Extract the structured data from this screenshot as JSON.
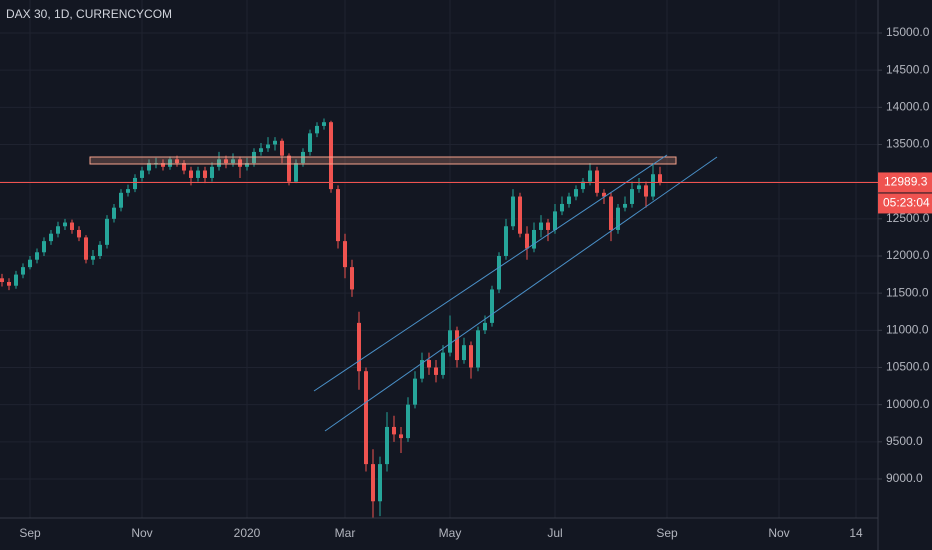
{
  "chart_data": {
    "type": "candlestick",
    "title": "DAX 30, 1D, CURRENCYCOM",
    "countdown": "05:23:04",
    "up_color": "#26a69a",
    "down_color": "#ef5350",
    "grid": true,
    "categories": [
      null,
      null,
      null,
      null,
      "Sep",
      null,
      null,
      null,
      null,
      null,
      null,
      null,
      null,
      null,
      null,
      null,
      null,
      null,
      null,
      null,
      "Nov",
      null,
      null,
      null,
      null,
      null,
      null,
      null,
      null,
      null,
      null,
      null,
      null,
      null,
      null,
      "2020",
      null,
      null,
      null,
      null,
      null,
      null,
      null,
      null,
      null,
      null,
      null,
      null,
      null,
      "Mar",
      null,
      null,
      null,
      null,
      null,
      null,
      null,
      null,
      null,
      null,
      null,
      null,
      null,
      null,
      "May",
      null,
      null,
      null,
      null,
      null,
      null,
      null,
      null,
      null,
      null,
      null,
      null,
      null,
      null,
      "Jul",
      null,
      null,
      null,
      null,
      null,
      null,
      null,
      null,
      null,
      null,
      null,
      null,
      null,
      null,
      null,
      "Sep",
      null,
      null,
      null,
      null,
      null,
      null,
      null,
      null,
      null,
      null,
      null,
      null,
      null,
      null,
      null,
      "Nov",
      null,
      null,
      null,
      null,
      null,
      null,
      null,
      null,
      null,
      null,
      "14",
      null,
      null,
      null
    ],
    "open": [
      11700,
      11650,
      11600,
      11750,
      11850,
      11950,
      12050,
      12200,
      12300,
      12400,
      12450,
      12350,
      12250,
      11950,
      12000,
      12150,
      12500,
      12650,
      12850,
      12900,
      13050,
      13150,
      13230,
      13250,
      13200,
      13300,
      13250,
      13150,
      13050,
      13150,
      13050,
      13200,
      13300,
      13250,
      13300,
      13200,
      13250,
      13400,
      13450,
      13500,
      13550,
      13350,
      13000,
      13250,
      13400,
      13650,
      13750,
      13800,
      12900,
      12200,
      11850,
      11100,
      10450,
      9200,
      8700,
      9200,
      9700,
      9600,
      9550,
      10000,
      10350,
      10600,
      10500,
      10400,
      10700,
      11000,
      10600,
      10800,
      10500,
      11000,
      11100,
      11550,
      12000,
      12400,
      12800,
      12300,
      12100,
      12350,
      12450,
      12350,
      12600,
      12700,
      12800,
      12900,
      13000,
      13150,
      12850,
      12800,
      12350,
      12650,
      12700,
      12900,
      12950,
      12800,
      13100,
      null,
      null,
      null,
      null,
      null,
      null,
      null,
      null,
      null,
      null,
      null,
      null,
      null,
      null,
      null,
      null,
      null,
      null,
      null,
      null,
      null,
      null,
      null,
      null,
      null,
      null,
      null,
      null,
      null,
      null,
      null
    ],
    "high": [
      11760,
      11700,
      11800,
      11900,
      12000,
      12100,
      12250,
      12350,
      12460,
      12500,
      12490,
      12400,
      12280,
      12080,
      12200,
      12550,
      12700,
      12900,
      12960,
      13100,
      13200,
      13300,
      13320,
      13300,
      13340,
      13350,
      13290,
      13200,
      13200,
      13200,
      13260,
      13400,
      13350,
      13380,
      13340,
      13320,
      13450,
      13520,
      13600,
      13600,
      13580,
      13380,
      13300,
      13450,
      13700,
      13800,
      13850,
      13820,
      12950,
      12300,
      11950,
      11250,
      10500,
      9400,
      9300,
      9900,
      9850,
      9700,
      10100,
      10450,
      10700,
      10700,
      10600,
      10800,
      11200,
      11050,
      10900,
      10850,
      11050,
      11200,
      11600,
      12050,
      12500,
      12900,
      12850,
      12400,
      12450,
      12550,
      12500,
      12700,
      12800,
      12850,
      12950,
      13050,
      13250,
      13200,
      12900,
      12850,
      12700,
      12800,
      13000,
      13050,
      13000,
      13250,
      13200,
      null,
      null,
      null,
      null,
      null,
      null,
      null,
      null,
      null,
      null,
      null,
      null,
      null,
      null,
      null,
      null,
      null,
      null,
      null,
      null,
      null,
      null,
      null,
      null,
      null,
      null,
      null,
      null,
      null,
      null,
      null
    ],
    "low": [
      11590,
      11540,
      11560,
      11700,
      11820,
      11900,
      12000,
      12150,
      12250,
      12350,
      12300,
      12200,
      11900,
      11880,
      11960,
      12100,
      12450,
      12600,
      12800,
      12860,
      13000,
      13100,
      13180,
      13150,
      13160,
      13200,
      13100,
      12950,
      13000,
      12980,
      13000,
      13150,
      13180,
      13200,
      13050,
      13150,
      13200,
      13350,
      13400,
      13420,
      13250,
      12950,
      12980,
      13200,
      13350,
      13600,
      13700,
      12850,
      12100,
      11700,
      11450,
      10200,
      9100,
      8450,
      8500,
      9100,
      9500,
      9350,
      9500,
      9950,
      10300,
      10400,
      10300,
      10350,
      10650,
      10500,
      10550,
      10350,
      10450,
      10950,
      11050,
      11500,
      11950,
      12350,
      12250,
      11950,
      12050,
      12250,
      12200,
      12300,
      12550,
      12650,
      12750,
      12850,
      12950,
      12800,
      12700,
      12200,
      12300,
      12600,
      12650,
      12850,
      12650,
      12750,
      12950,
      null,
      null,
      null,
      null,
      null,
      null,
      null,
      null,
      null,
      null,
      null,
      null,
      null,
      null,
      null,
      null,
      null,
      null,
      null,
      null,
      null,
      null,
      null,
      null,
      null,
      null,
      null,
      null,
      null,
      null,
      null
    ],
    "close": [
      11650,
      11600,
      11750,
      11850,
      11950,
      12050,
      12200,
      12300,
      12400,
      12450,
      12350,
      12250,
      11950,
      12000,
      12150,
      12500,
      12650,
      12850,
      12900,
      13050,
      13150,
      13250,
      13250,
      13200,
      13300,
      13250,
      13150,
      13050,
      13150,
      13050,
      13200,
      13300,
      13250,
      13300,
      13200,
      13250,
      13400,
      13450,
      13500,
      13550,
      13350,
      13000,
      13250,
      13400,
      13650,
      13750,
      13800,
      12900,
      12200,
      11850,
      11550,
      10450,
      9200,
      8700,
      9200,
      9700,
      9600,
      9550,
      10000,
      10350,
      10600,
      10500,
      10400,
      10700,
      11000,
      10600,
      10800,
      10500,
      11000,
      11100,
      11550,
      12000,
      12400,
      12800,
      12300,
      12100,
      12350,
      12450,
      12350,
      12600,
      12700,
      12800,
      12900,
      13000,
      13150,
      12850,
      12800,
      12350,
      12650,
      12700,
      12900,
      12950,
      12800,
      13100,
      12989.3,
      null,
      null,
      null,
      null,
      null,
      null,
      null,
      null,
      null,
      null,
      null,
      null,
      null,
      null,
      null,
      null,
      null,
      null,
      null,
      null,
      null,
      null,
      null,
      null,
      null,
      null,
      null,
      null,
      null,
      null,
      null
    ],
    "ylim": [
      8475,
      15444
    ],
    "yticks": [
      {
        "value": 9000,
        "label": "9000.0"
      },
      {
        "value": 9500,
        "label": "9500.0"
      },
      {
        "value": 10000,
        "label": "10000.0"
      },
      {
        "value": 10500,
        "label": "10500.0"
      },
      {
        "value": 11000,
        "label": "11000.0"
      },
      {
        "value": 11500,
        "label": "11500.0"
      },
      {
        "value": 12000,
        "label": "12000.0"
      },
      {
        "value": 12500,
        "label": "12500.0"
      },
      {
        "value": 13000,
        "label": "13000.0"
      },
      {
        "value": 13500,
        "label": "13500.0"
      },
      {
        "value": 14000,
        "label": "14000.0"
      },
      {
        "value": 14500,
        "label": "14500.0"
      },
      {
        "value": 15000,
        "label": "15000.0"
      }
    ]
  }
}
